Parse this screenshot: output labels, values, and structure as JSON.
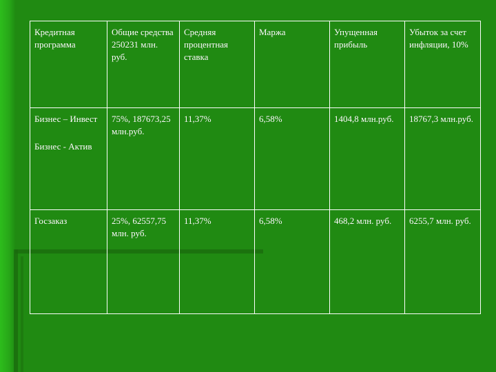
{
  "header": [
    "Кредитная программа",
    "Общие средства 250231 млн. руб.",
    "Средняя процентная ставка",
    "Маржа",
    "Упущенная прибыль",
    "Убыток за счет инфляции, 10%"
  ],
  "rows": [
    {
      "program_a": "Бизнес – Инвест",
      "program_b": "Бизнес - Актив",
      "funds": "75%, 187673,25 млн.руб.",
      "rate": "11,37%",
      "margin": "6,58%",
      "lost_profit": "1404,8 млн.руб.",
      "inflation_loss": "18767,3 млн.руб."
    },
    {
      "program_a": "Госзаказ",
      "funds": "25%, 62557,75 млн. руб.",
      "rate": "11,37%",
      "margin": "6,58%",
      "lost_profit": "468,2 млн. руб.",
      "inflation_loss": "6255,7 млн. руб."
    }
  ],
  "colors": {
    "background": "#208a12",
    "left_bar": "#2dbd1c",
    "text": "#ffffff",
    "grid": "#ffffff"
  }
}
